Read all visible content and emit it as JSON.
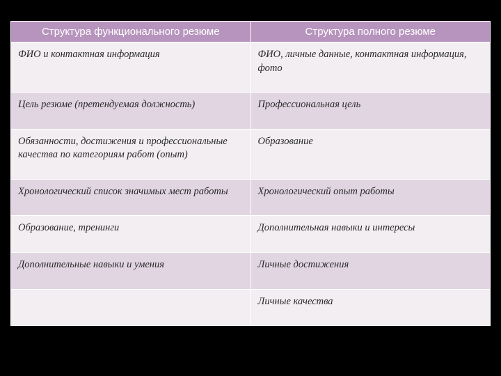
{
  "table": {
    "type": "table",
    "columns": [
      "Структура функционального резюме",
      "Структура полного резюме"
    ],
    "rows": [
      [
        "ФИО и контактная информация",
        "ФИО, личные данные, контактная информация, фото"
      ],
      [
        "Цель резюме (претендуемая должность)",
        "Профессиональная цель"
      ],
      [
        "Обязанности, достижения и профессиональные качества по категориям работ (опыт)",
        "Образование"
      ],
      [
        "Хронологический список значимых мест работы",
        "Хронологический опыт работы"
      ],
      [
        "Образование, тренинги",
        "Дополнительная навыки и интересы"
      ],
      [
        "Дополнительные навыки  и  умения",
        "Личные достижения"
      ],
      [
        "",
        "Личные качества"
      ]
    ],
    "header_bg": "#b794bd",
    "header_text_color": "#ffffff",
    "row_light_bg": "#f2eef2",
    "row_dark_bg": "#e2d5e2",
    "border_color": "#ffffff",
    "font_size_header": 15,
    "font_size_cell": 14.5,
    "cell_font_style": "italic",
    "background_color": "#000000"
  }
}
